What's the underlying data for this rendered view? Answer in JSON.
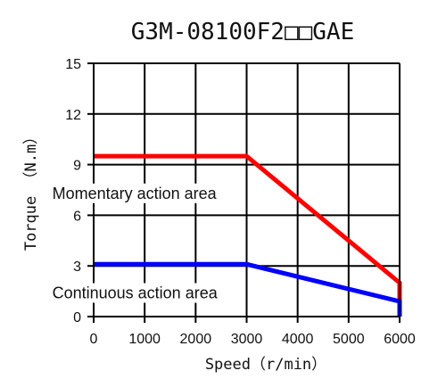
{
  "chart_data": {
    "type": "line",
    "title": "G3M-08100F2□□GAE",
    "xlabel": "Speed（r/min）",
    "ylabel": "Torque （N.m）",
    "xlim": [
      0,
      6000
    ],
    "ylim": [
      0,
      15
    ],
    "x_ticks": [
      0,
      1000,
      2000,
      3000,
      4000,
      5000,
      6000
    ],
    "y_ticks": [
      0,
      3,
      6,
      9,
      12,
      15
    ],
    "grid": true,
    "series": [
      {
        "color": "#ff0000",
        "points": [
          [
            0,
            9.5
          ],
          [
            3000,
            9.5
          ],
          [
            6000,
            2.0
          ],
          [
            6000,
            0
          ]
        ]
      },
      {
        "color": "#0000ff",
        "points": [
          [
            0,
            3.1
          ],
          [
            3000,
            3.1
          ],
          [
            6000,
            0.9
          ],
          [
            6000,
            0
          ]
        ]
      }
    ],
    "annotations": [
      {
        "text": "Momentary action area",
        "x": 1200,
        "y": 7.3
      },
      {
        "text": "Continuous action area",
        "x": 1200,
        "y": 1.4
      }
    ]
  }
}
